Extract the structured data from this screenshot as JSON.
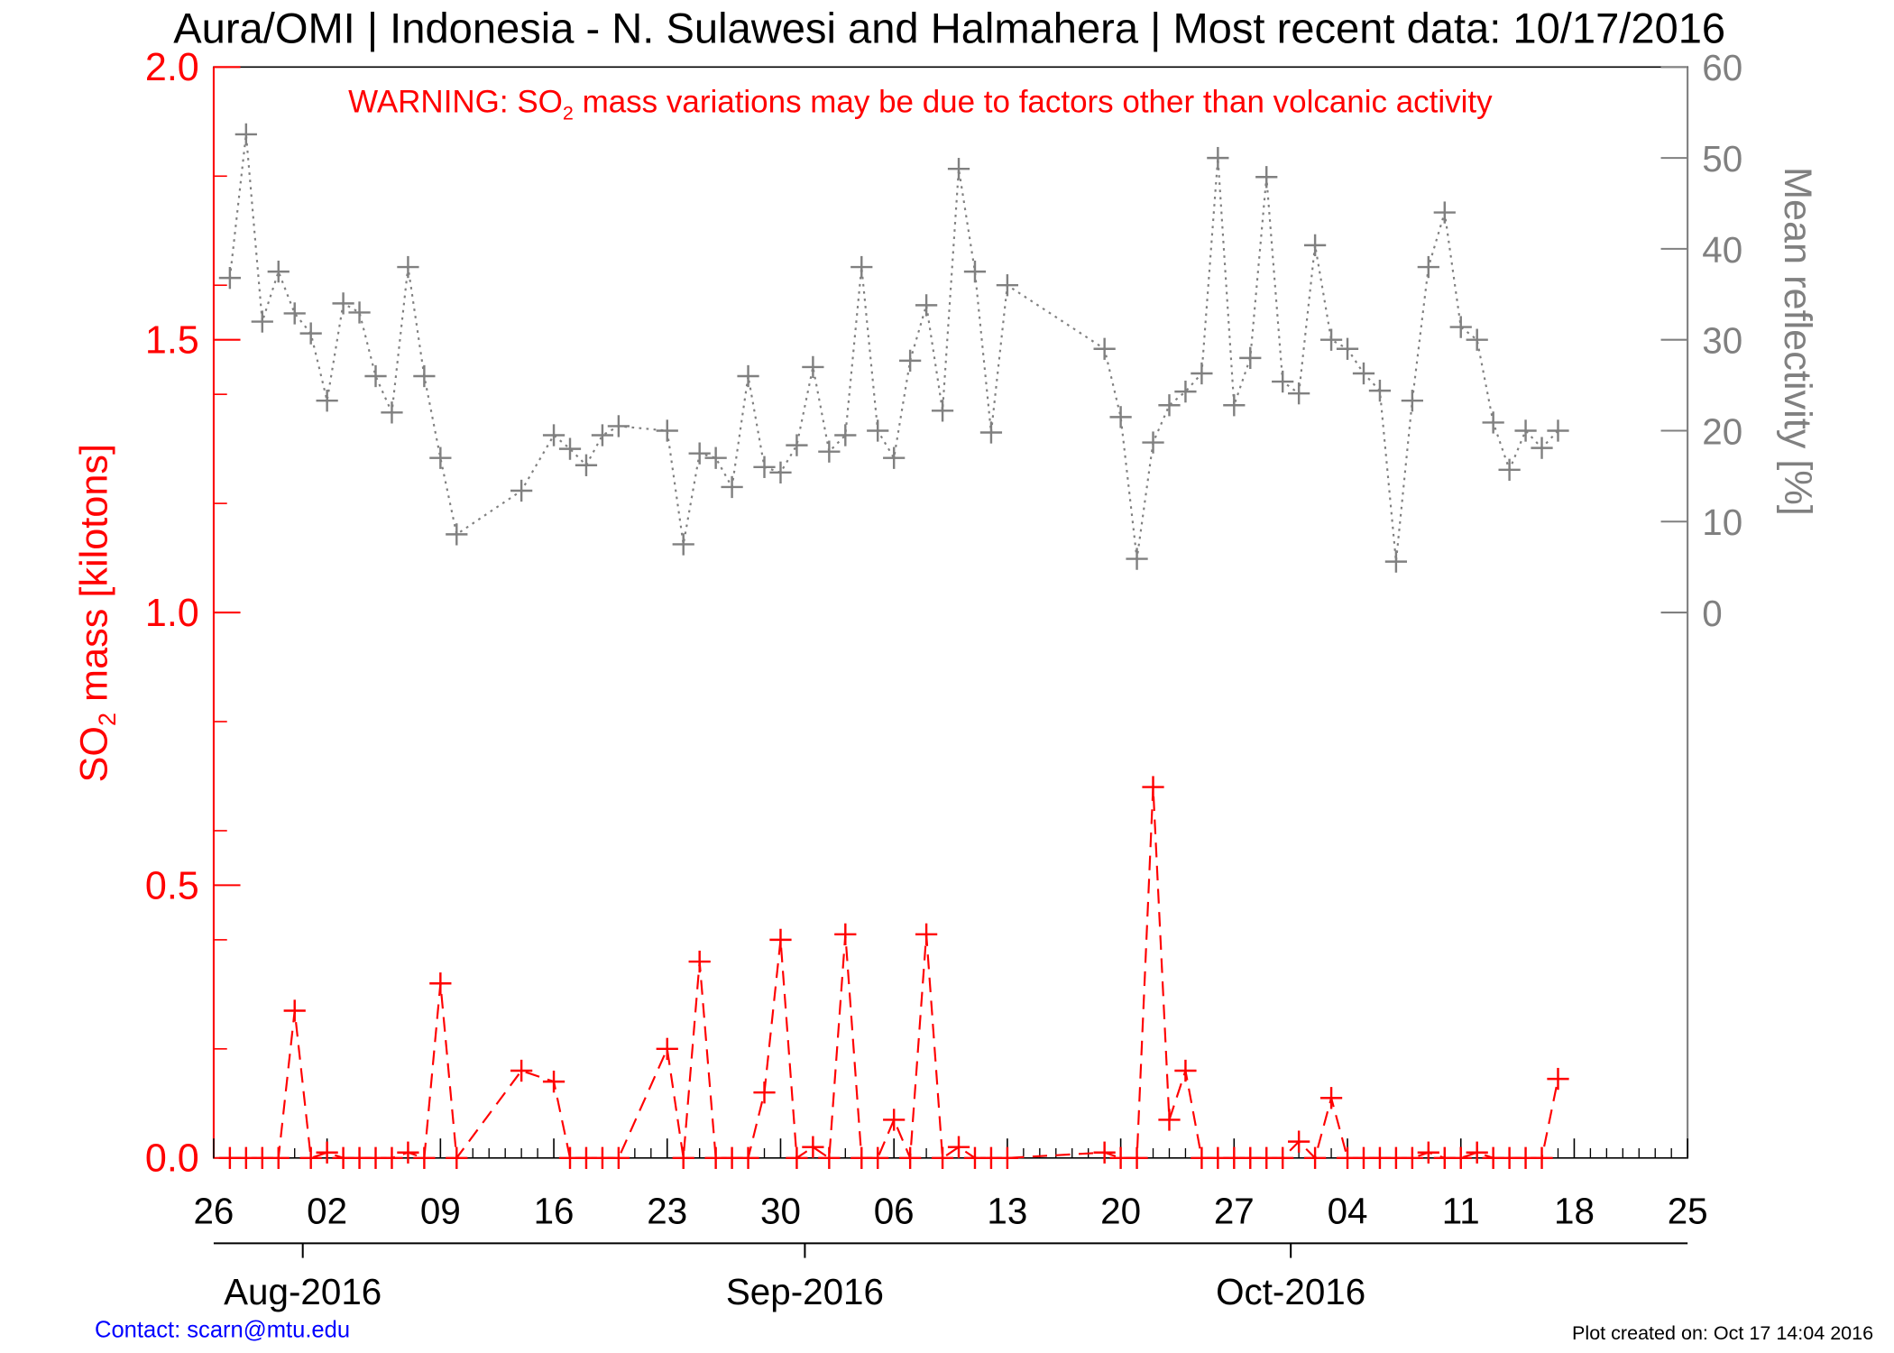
{
  "chart_data": {
    "type": "line",
    "title": "Aura/OMI | Indonesia - N. Sulawesi and Halmahera | Most recent data: 10/17/2016",
    "warning": {
      "prefix": "WARNING: SO",
      "sub": "2",
      "suffix": " mass variations may be due to factors other than volcanic activity"
    },
    "ylabel_left": {
      "prefix": "SO",
      "sub": "2",
      "suffix": " mass [kilotons]"
    },
    "ylabel_right": "Mean reflectivity [%]",
    "ylim_left": [
      0,
      2
    ],
    "ylim_right": [
      0,
      60
    ],
    "left_ticks": [
      "0.0",
      "0.5",
      "1.0",
      "1.5",
      "2.0"
    ],
    "right_ticks": [
      "0",
      "10",
      "20",
      "30",
      "40",
      "50",
      "60"
    ],
    "x_start": "2016-07-26",
    "x_days": 91,
    "x_tick_labels": [
      "26",
      "02",
      "09",
      "16",
      "23",
      "30",
      "06",
      "13",
      "20",
      "27",
      "04",
      "11",
      "18",
      "25"
    ],
    "months": [
      {
        "label": "Aug-2016",
        "day": 6
      },
      {
        "label": "Sep-2016",
        "day": 37
      },
      {
        "label": "Oct-2016",
        "day": 67
      }
    ],
    "colors": {
      "so2": "#ff0000",
      "reflectivity": "#808080",
      "contact": "#0000ff"
    },
    "series": [
      {
        "name": "SO2 mass",
        "axis": "left",
        "days": [
          1,
          2,
          3,
          4,
          5,
          6,
          7,
          8,
          9,
          10,
          11,
          12,
          13,
          14,
          15,
          19,
          21,
          22,
          23,
          24,
          25,
          28,
          29,
          30,
          31,
          32,
          33,
          34,
          35,
          36,
          37,
          38,
          39,
          40,
          41,
          42,
          43,
          44,
          45,
          46,
          47,
          48,
          49,
          55,
          56,
          57,
          58,
          59,
          60,
          61,
          62,
          63,
          64,
          65,
          66,
          67,
          68,
          69,
          70,
          71,
          72,
          73,
          74,
          75,
          76,
          77,
          78,
          79,
          80,
          81,
          82,
          83
        ],
        "values": [
          0,
          0,
          0,
          0,
          0.27,
          0,
          0.01,
          0,
          0,
          0,
          0,
          0.01,
          0,
          0.32,
          0,
          0.16,
          0.14,
          0,
          0,
          0,
          0,
          0.2,
          0,
          0.36,
          0,
          0,
          0,
          0.12,
          0.4,
          0,
          0.02,
          0,
          0.41,
          0,
          0,
          0.07,
          0,
          0.41,
          0,
          0.02,
          0,
          0,
          0,
          0.01,
          0,
          0,
          0.68,
          0.07,
          0.16,
          0,
          0,
          0,
          0,
          0,
          0,
          0.03,
          0,
          0.11,
          0,
          0,
          0,
          0,
          0,
          0.01,
          0,
          0,
          0.01,
          0,
          0,
          0,
          0,
          0.145
        ]
      },
      {
        "name": "Mean reflectivity",
        "axis": "right",
        "days": [
          1,
          2,
          3,
          4,
          5,
          6,
          7,
          8,
          9,
          10,
          11,
          12,
          13,
          14,
          15,
          19,
          21,
          22,
          23,
          24,
          25,
          28,
          29,
          30,
          31,
          32,
          33,
          34,
          35,
          36,
          37,
          38,
          39,
          40,
          41,
          42,
          43,
          44,
          45,
          46,
          47,
          48,
          49,
          55,
          56,
          57,
          58,
          59,
          60,
          61,
          62,
          63,
          64,
          65,
          66,
          67,
          68,
          69,
          70,
          71,
          72,
          73,
          74,
          75,
          76,
          77,
          78,
          79,
          80,
          81,
          82,
          83
        ],
        "values": [
          36.8,
          52.6,
          32,
          37.5,
          32.9,
          30.7,
          23.3,
          34,
          33,
          26,
          22,
          38,
          26,
          17,
          8.6,
          13.4,
          19.5,
          18,
          16.2,
          19.5,
          20.5,
          20,
          7.5,
          17.5,
          17,
          13.8,
          26,
          16,
          15.4,
          18.4,
          27,
          17.7,
          19.5,
          38,
          20,
          17,
          27.7,
          33.8,
          22.2,
          48.8,
          37.5,
          19.8,
          36,
          29,
          21.5,
          5.9,
          18.7,
          22.8,
          24.3,
          26.3,
          50,
          22.8,
          28,
          47.9,
          25.4,
          24.1,
          40.4,
          30,
          29,
          26.3,
          24.4,
          5.6,
          23.3,
          38,
          44,
          31.4,
          30,
          20.9,
          15.7,
          20,
          18.1,
          20
        ]
      }
    ],
    "footer_left": "Contact: scarn@mtu.edu",
    "footer_right": "Plot created on: Oct 17 14:04 2016"
  }
}
